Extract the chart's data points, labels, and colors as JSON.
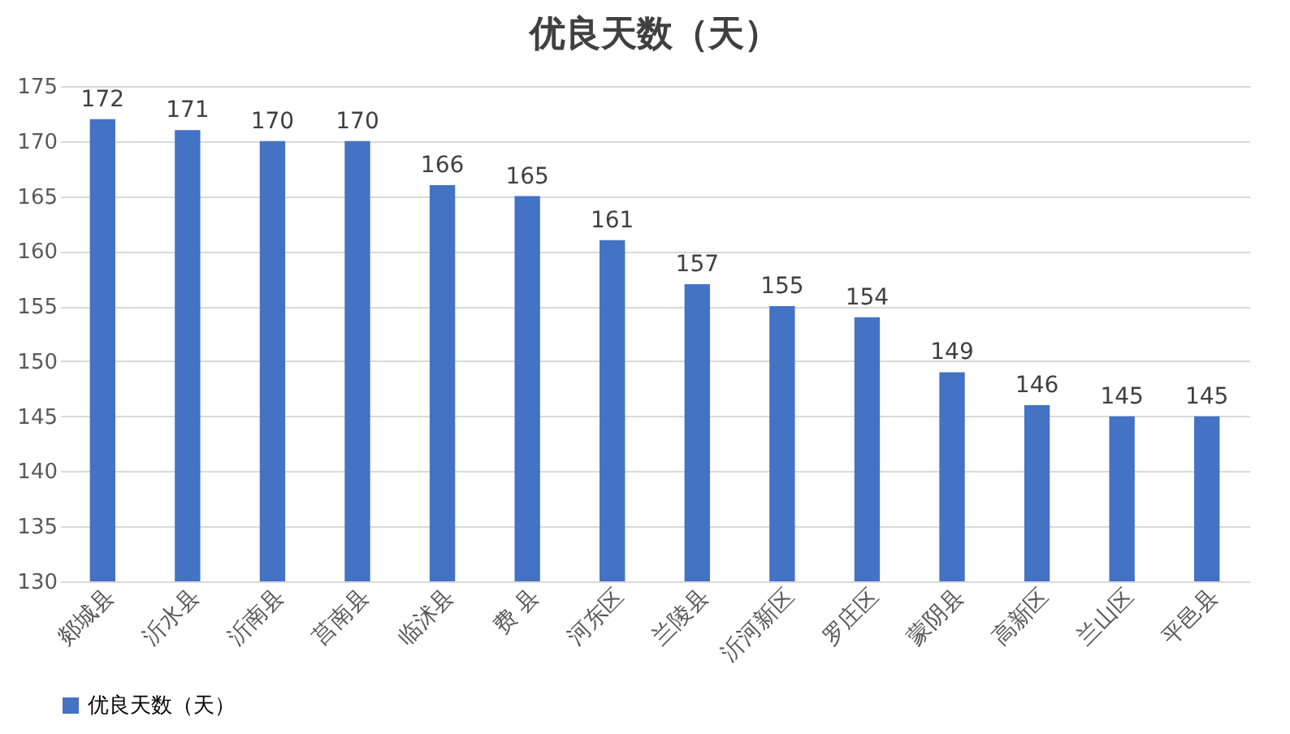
{
  "chart_data": {
    "type": "bar",
    "title": "优良天数（天）",
    "categories": [
      "郯城县",
      "沂水县",
      "沂南县",
      "莒南县",
      "临沭县",
      "费 县",
      "河东区",
      "兰陵县",
      "沂河新区",
      "罗庄区",
      "蒙阴县",
      "高新区",
      "兰山区",
      "平邑县"
    ],
    "series": [
      {
        "name": "优良天数（天）",
        "color": "#4472c4",
        "values": [
          172,
          171,
          170,
          170,
          166,
          165,
          161,
          157,
          155,
          154,
          149,
          146,
          145,
          145
        ]
      }
    ],
    "ylim": [
      130,
      175
    ],
    "yticks": [
      130,
      135,
      140,
      145,
      150,
      155,
      160,
      165,
      170,
      175
    ],
    "grid": "y",
    "legend": "bottom",
    "data_labels": true
  }
}
